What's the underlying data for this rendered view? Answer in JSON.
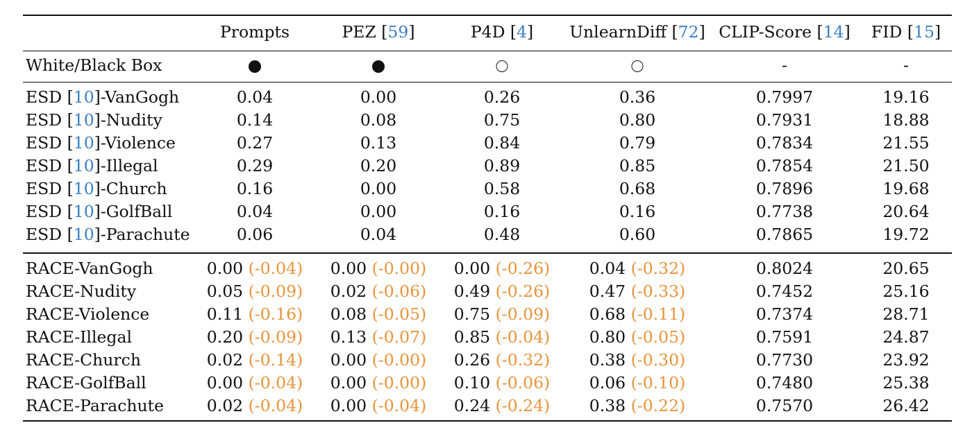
{
  "header": {
    "prompts": "Prompts",
    "pez": "PEZ",
    "pez_ref": "59",
    "p4d": "P4D",
    "p4d_ref": "4",
    "unlearndiff": "UnlearnDiff",
    "unlearndiff_ref": "72",
    "clip": "CLIP-Score",
    "clip_ref": "14",
    "fid": "FID",
    "fid_ref": "15"
  },
  "box_row": {
    "label": "White/Black Box",
    "prompts": "filled",
    "pez": "filled",
    "p4d": "empty",
    "unlearndiff": "empty",
    "clip": "-",
    "fid": "-"
  },
  "esd_rows": [
    {
      "prefix": "ESD",
      "ref": "10",
      "concept": "VanGogh",
      "prompts": "0.04",
      "pez": "0.00",
      "p4d": "0.26",
      "unlearndiff": "0.36",
      "clip": "0.7997",
      "fid": "19.16"
    },
    {
      "prefix": "ESD",
      "ref": "10",
      "concept": "Nudity",
      "prompts": "0.14",
      "pez": "0.08",
      "p4d": "0.75",
      "unlearndiff": "0.80",
      "clip": "0.7931",
      "fid": "18.88"
    },
    {
      "prefix": "ESD",
      "ref": "10",
      "concept": "Violence",
      "prompts": "0.27",
      "pez": "0.13",
      "p4d": "0.84",
      "unlearndiff": "0.79",
      "clip": "0.7834",
      "fid": "21.55"
    },
    {
      "prefix": "ESD",
      "ref": "10",
      "concept": "Illegal",
      "prompts": "0.29",
      "pez": "0.20",
      "p4d": "0.89",
      "unlearndiff": "0.85",
      "clip": "0.7854",
      "fid": "21.50"
    },
    {
      "prefix": "ESD",
      "ref": "10",
      "concept": "Church",
      "prompts": "0.16",
      "pez": "0.00",
      "p4d": "0.58",
      "unlearndiff": "0.68",
      "clip": "0.7896",
      "fid": "19.68"
    },
    {
      "prefix": "ESD",
      "ref": "10",
      "concept": "GolfBall",
      "prompts": "0.04",
      "pez": "0.00",
      "p4d": "0.16",
      "unlearndiff": "0.16",
      "clip": "0.7738",
      "fid": "20.64"
    },
    {
      "prefix": "ESD",
      "ref": "10",
      "concept": "Parachute",
      "prompts": "0.06",
      "pez": "0.04",
      "p4d": "0.48",
      "unlearndiff": "0.60",
      "clip": "0.7865",
      "fid": "19.72"
    }
  ],
  "race_rows": [
    {
      "name": "RACE-VanGogh",
      "prompts": "0.00",
      "prompts_d": "(-0.04)",
      "pez": "0.00",
      "pez_d": "(-0.00)",
      "p4d": "0.00",
      "p4d_d": "(-0.26)",
      "unlearndiff": "0.04",
      "unlearndiff_d": "(-0.32)",
      "clip": "0.8024",
      "fid": "20.65"
    },
    {
      "name": "RACE-Nudity",
      "prompts": "0.05",
      "prompts_d": "(-0.09)",
      "pez": "0.02",
      "pez_d": "(-0.06)",
      "p4d": "0.49",
      "p4d_d": "(-0.26)",
      "unlearndiff": "0.47",
      "unlearndiff_d": "(-0.33)",
      "clip": "0.7452",
      "fid": "25.16"
    },
    {
      "name": "RACE-Violence",
      "prompts": "0.11",
      "prompts_d": "(-0.16)",
      "pez": "0.08",
      "pez_d": "(-0.05)",
      "p4d": "0.75",
      "p4d_d": "(-0.09)",
      "unlearndiff": "0.68",
      "unlearndiff_d": "(-0.11)",
      "clip": "0.7374",
      "fid": "28.71"
    },
    {
      "name": "RACE-Illegal",
      "prompts": "0.20",
      "prompts_d": "(-0.09)",
      "pez": "0.13",
      "pez_d": "(-0.07)",
      "p4d": "0.85",
      "p4d_d": "(-0.04)",
      "unlearndiff": "0.80",
      "unlearndiff_d": "(-0.05)",
      "clip": "0.7591",
      "fid": "24.87"
    },
    {
      "name": "RACE-Church",
      "prompts": "0.02",
      "prompts_d": "(-0.14)",
      "pez": "0.00",
      "pez_d": "(-0.00)",
      "p4d": "0.26",
      "p4d_d": "(-0.32)",
      "unlearndiff": "0.38",
      "unlearndiff_d": "(-0.30)",
      "clip": "0.7730",
      "fid": "23.92"
    },
    {
      "name": "RACE-GolfBall",
      "prompts": "0.00",
      "prompts_d": "(-0.04)",
      "pez": "0.00",
      "pez_d": "(-0.00)",
      "p4d": "0.10",
      "p4d_d": "(-0.06)",
      "unlearndiff": "0.06",
      "unlearndiff_d": "(-0.10)",
      "clip": "0.7480",
      "fid": "25.38"
    },
    {
      "name": "RACE-Parachute",
      "prompts": "0.02",
      "prompts_d": "(-0.04)",
      "pez": "0.00",
      "pez_d": "(-0.04)",
      "p4d": "0.24",
      "p4d_d": "(-0.24)",
      "unlearndiff": "0.38",
      "unlearndiff_d": "(-0.22)",
      "clip": "0.7570",
      "fid": "26.42"
    }
  ],
  "colors": {
    "citation": "#3a7fc1",
    "delta": "#e8943a",
    "rule": "#111111"
  }
}
